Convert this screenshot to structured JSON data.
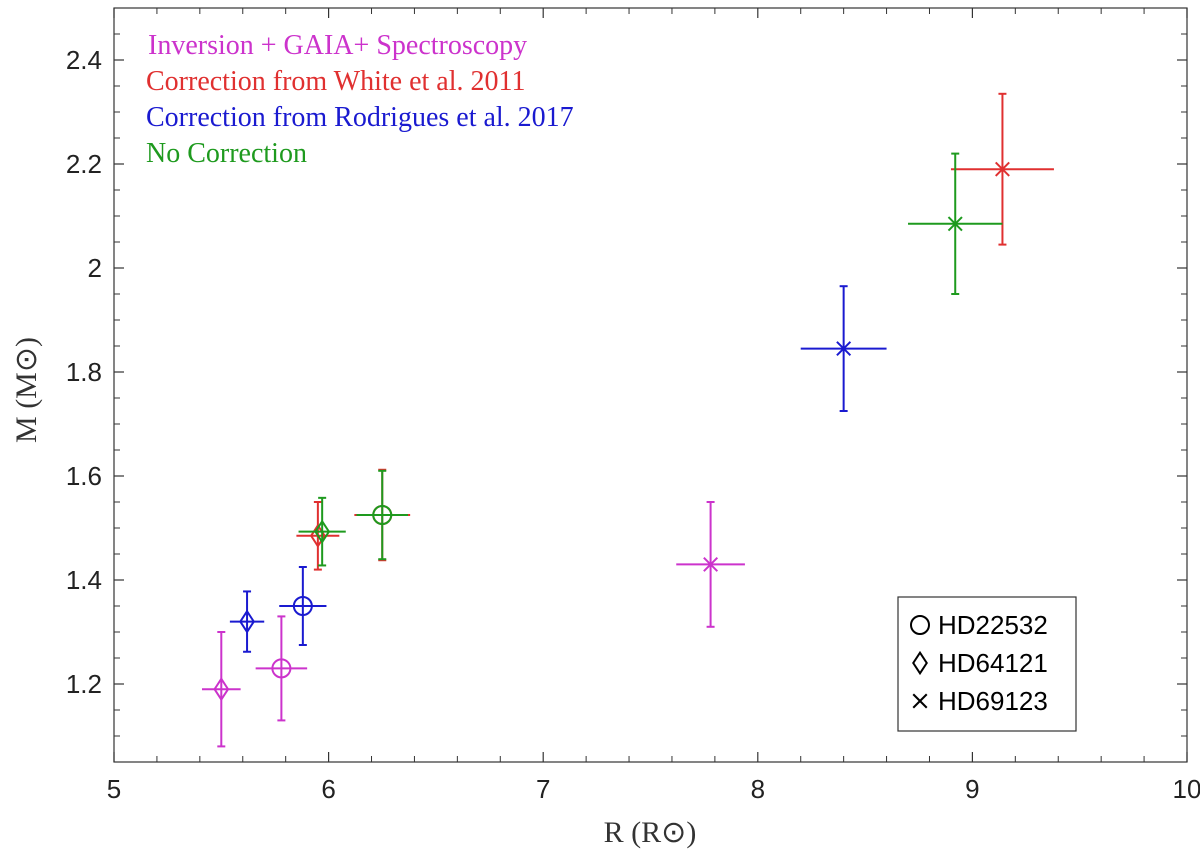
{
  "chart_data": {
    "type": "scatter",
    "xlabel": "R (R⊙)",
    "ylabel": "M (M⊙)",
    "xlim": [
      5,
      10
    ],
    "ylim": [
      1.05,
      2.5
    ],
    "x_ticks": [
      5,
      6,
      7,
      8,
      9,
      10
    ],
    "y_ticks": [
      1.2,
      1.4,
      1.6,
      1.8,
      2,
      2.2,
      2.4
    ],
    "x_tick_labels": [
      "5",
      "6",
      "7",
      "8",
      "9",
      "10"
    ],
    "y_tick_labels": [
      "1.2",
      "1.4",
      "1.6",
      "1.8",
      "2",
      "2.2",
      "2.4"
    ],
    "grid": false,
    "legend_position": "top-left",
    "series": [
      {
        "name": "Inversion + GAIA+ Spectroscopy",
        "color": "#cc33cc",
        "points": [
          {
            "star": "HD22532",
            "marker": "circle",
            "x": 5.78,
            "y": 1.23,
            "xerr": 0.12,
            "yerr": 0.1
          },
          {
            "star": "HD64121",
            "marker": "diamond",
            "x": 5.5,
            "y": 1.19,
            "xerr": 0.09,
            "yerr": 0.11
          },
          {
            "star": "HD69123",
            "marker": "cross",
            "x": 7.78,
            "y": 1.43,
            "xerr": 0.16,
            "yerr": 0.12
          }
        ]
      },
      {
        "name": "Correction from White et al. 2011",
        "color": "#e03030",
        "points": [
          {
            "star": "HD22532",
            "marker": "circle",
            "x": 6.25,
            "y": 1.525,
            "xerr": 0.13,
            "yerr": 0.087
          },
          {
            "star": "HD64121",
            "marker": "diamond",
            "x": 5.95,
            "y": 1.485,
            "xerr": 0.1,
            "yerr": 0.065
          },
          {
            "star": "HD69123",
            "marker": "cross",
            "x": 9.14,
            "y": 2.19,
            "xerr": 0.24,
            "yerr": 0.145
          }
        ]
      },
      {
        "name": "Correction from Rodrigues et al. 2017",
        "color": "#1a1ad0",
        "points": [
          {
            "star": "HD22532",
            "marker": "circle",
            "x": 5.88,
            "y": 1.35,
            "xerr": 0.11,
            "yerr": 0.075
          },
          {
            "star": "HD64121",
            "marker": "diamond",
            "x": 5.62,
            "y": 1.32,
            "xerr": 0.08,
            "yerr": 0.058
          },
          {
            "star": "HD69123",
            "marker": "cross",
            "x": 8.4,
            "y": 1.845,
            "xerr": 0.2,
            "yerr": 0.12
          }
        ]
      },
      {
        "name": "No Correction",
        "color": "#1e9a1e",
        "points": [
          {
            "star": "HD22532",
            "marker": "circle",
            "x": 6.25,
            "y": 1.525,
            "xerr": 0.12,
            "yerr": 0.085
          },
          {
            "star": "HD64121",
            "marker": "diamond",
            "x": 5.97,
            "y": 1.493,
            "xerr": 0.11,
            "yerr": 0.065
          },
          {
            "star": "HD69123",
            "marker": "cross",
            "x": 8.92,
            "y": 2.085,
            "xerr": 0.22,
            "yerr": 0.135
          }
        ]
      }
    ],
    "marker_legend": [
      {
        "marker": "circle",
        "label": "HD22532"
      },
      {
        "marker": "diamond",
        "label": "HD64121"
      },
      {
        "marker": "cross",
        "label": "HD69123"
      }
    ]
  }
}
